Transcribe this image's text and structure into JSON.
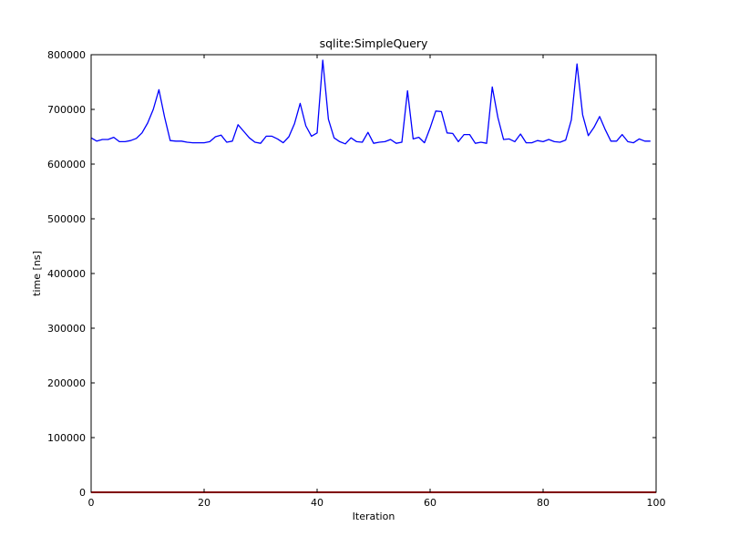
{
  "chart_data": {
    "type": "line",
    "title": "sqlite:SimpleQuery",
    "xlabel": "Iteration",
    "ylabel": "time [ns]",
    "xlim": [
      0,
      100
    ],
    "ylim": [
      0,
      800000
    ],
    "grid": false,
    "x_ticks": [
      0,
      20,
      40,
      60,
      80,
      100
    ],
    "y_ticks": [
      0,
      100000,
      200000,
      300000,
      400000,
      500000,
      600000,
      700000,
      800000
    ],
    "x_tick_labels": [
      "0",
      "20",
      "40",
      "60",
      "80",
      "100"
    ],
    "y_tick_labels": [
      "0",
      "100000",
      "200000",
      "300000",
      "400000",
      "500000",
      "600000",
      "700000",
      "800000"
    ],
    "series": [
      {
        "color": "#0000ff",
        "x": [
          0,
          1,
          2,
          3,
          4,
          5,
          6,
          7,
          8,
          9,
          10,
          11,
          12,
          13,
          14,
          15,
          16,
          17,
          18,
          19,
          20,
          21,
          22,
          23,
          24,
          25,
          26,
          27,
          28,
          29,
          30,
          31,
          32,
          33,
          34,
          35,
          36,
          37,
          38,
          39,
          40,
          41,
          42,
          43,
          44,
          45,
          46,
          47,
          48,
          49,
          50,
          51,
          52,
          53,
          54,
          55,
          56,
          57,
          58,
          59,
          60,
          61,
          62,
          63,
          64,
          65,
          66,
          67,
          68,
          69,
          70,
          71,
          72,
          73,
          74,
          75,
          76,
          77,
          78,
          79,
          80,
          81,
          82,
          83,
          84,
          85,
          86,
          87,
          88,
          89,
          90,
          91,
          92,
          93,
          94,
          95,
          96,
          97,
          98,
          99
        ],
        "values": [
          648000,
          642000,
          645000,
          645000,
          649000,
          641000,
          641000,
          643000,
          647000,
          657000,
          675000,
          700000,
          736000,
          686000,
          643000,
          642000,
          642000,
          640000,
          639000,
          639000,
          639000,
          641000,
          650000,
          653000,
          640000,
          642000,
          672000,
          660000,
          648000,
          640000,
          638000,
          651000,
          651000,
          646000,
          639000,
          650000,
          674000,
          711000,
          670000,
          651000,
          657000,
          790000,
          682000,
          648000,
          641000,
          637000,
          648000,
          641000,
          640000,
          658000,
          638000,
          640000,
          641000,
          645000,
          638000,
          640000,
          734000,
          646000,
          649000,
          639000,
          666000,
          697000,
          696000,
          657000,
          656000,
          641000,
          654000,
          654000,
          638000,
          640000,
          638000,
          741000,
          685000,
          645000,
          646000,
          641000,
          655000,
          639000,
          639000,
          643000,
          641000,
          645000,
          641000,
          640000,
          644000,
          681000,
          783000,
          690000,
          652000,
          667000,
          687000,
          663000,
          642000,
          642000,
          654000,
          641000,
          639000,
          646000,
          642000,
          642000
        ]
      },
      {
        "color": "#ff0000",
        "x": [
          0,
          100
        ],
        "values": [
          0,
          0
        ]
      }
    ]
  }
}
